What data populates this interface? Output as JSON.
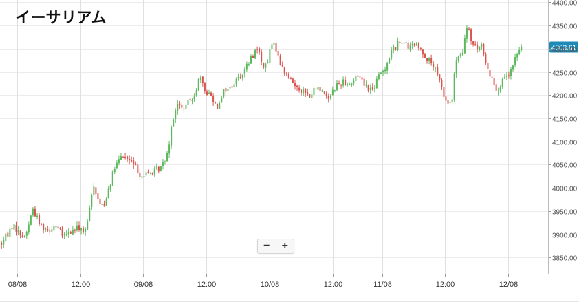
{
  "chart_data": {
    "type": "candlestick",
    "title": "イーサリアム",
    "ylim": [
      3815,
      4405
    ],
    "xlim": [
      0,
      4.34
    ],
    "y_ticks": [
      3850,
      3900,
      3950,
      4000,
      4050,
      4100,
      4150,
      4200,
      4250,
      4300,
      4350,
      4400
    ],
    "y_tick_labels": [
      "3850.00",
      "3900.00",
      "3950.00",
      "4000.00",
      "4050.00",
      "4100.00",
      "4150.00",
      "4200.00",
      "4250.00",
      "4300.00",
      "4350.00",
      "4400.00"
    ],
    "x_ticks": [
      {
        "label": "08/08",
        "x": 0.135
      },
      {
        "label": "12:00",
        "x": 0.635
      },
      {
        "label": "09/08",
        "x": 1.135
      },
      {
        "label": "12:00",
        "x": 1.635
      },
      {
        "label": "10/08",
        "x": 2.135
      },
      {
        "label": "12:00",
        "x": 2.635
      },
      {
        "label": "11/08",
        "x": 3.025
      },
      {
        "label": "12:00",
        "x": 3.525
      },
      {
        "label": "12/08",
        "x": 4.025
      }
    ],
    "current_price": 4303.61,
    "current_price_label": "4303.61",
    "grid": true,
    "up_color": "#5cb85c",
    "down_color": "#d9534f",
    "price_line_color": "#1f8ab8",
    "anchors": [
      [
        0.0,
        3875
      ],
      [
        0.07,
        3905
      ],
      [
        0.1,
        3920
      ],
      [
        0.16,
        3900
      ],
      [
        0.2,
        3895
      ],
      [
        0.26,
        3955
      ],
      [
        0.32,
        3920
      ],
      [
        0.38,
        3910
      ],
      [
        0.44,
        3920
      ],
      [
        0.5,
        3895
      ],
      [
        0.56,
        3905
      ],
      [
        0.62,
        3915
      ],
      [
        0.68,
        3905
      ],
      [
        0.71,
        3955
      ],
      [
        0.74,
        4010
      ],
      [
        0.78,
        3970
      ],
      [
        0.82,
        3960
      ],
      [
        0.86,
        4000
      ],
      [
        0.91,
        4045
      ],
      [
        0.97,
        4070
      ],
      [
        1.02,
        4060
      ],
      [
        1.06,
        4050
      ],
      [
        1.12,
        4025
      ],
      [
        1.16,
        4030
      ],
      [
        1.22,
        4035
      ],
      [
        1.28,
        4045
      ],
      [
        1.33,
        4080
      ],
      [
        1.36,
        4140
      ],
      [
        1.4,
        4180
      ],
      [
        1.45,
        4170
      ],
      [
        1.51,
        4190
      ],
      [
        1.55,
        4210
      ],
      [
        1.58,
        4240
      ],
      [
        1.62,
        4210
      ],
      [
        1.67,
        4200
      ],
      [
        1.72,
        4175
      ],
      [
        1.77,
        4210
      ],
      [
        1.82,
        4215
      ],
      [
        1.88,
        4235
      ],
      [
        1.94,
        4255
      ],
      [
        2.0,
        4285
      ],
      [
        2.04,
        4305
      ],
      [
        2.07,
        4270
      ],
      [
        2.11,
        4260
      ],
      [
        2.15,
        4310
      ],
      [
        2.19,
        4300
      ],
      [
        2.23,
        4260
      ],
      [
        2.28,
        4240
      ],
      [
        2.34,
        4220
      ],
      [
        2.4,
        4210
      ],
      [
        2.45,
        4195
      ],
      [
        2.5,
        4215
      ],
      [
        2.55,
        4210
      ],
      [
        2.6,
        4195
      ],
      [
        2.66,
        4220
      ],
      [
        2.72,
        4230
      ],
      [
        2.78,
        4225
      ],
      [
        2.84,
        4245
      ],
      [
        2.9,
        4220
      ],
      [
        2.95,
        4210
      ],
      [
        3.0,
        4240
      ],
      [
        3.05,
        4260
      ],
      [
        3.1,
        4295
      ],
      [
        3.15,
        4310
      ],
      [
        3.19,
        4320
      ],
      [
        3.24,
        4300
      ],
      [
        3.28,
        4310
      ],
      [
        3.34,
        4295
      ],
      [
        3.38,
        4280
      ],
      [
        3.44,
        4260
      ],
      [
        3.48,
        4230
      ],
      [
        3.52,
        4195
      ],
      [
        3.55,
        4180
      ],
      [
        3.58,
        4190
      ],
      [
        3.61,
        4275
      ],
      [
        3.66,
        4285
      ],
      [
        3.7,
        4350
      ],
      [
        3.74,
        4310
      ],
      [
        3.78,
        4300
      ],
      [
        3.82,
        4305
      ],
      [
        3.86,
        4255
      ],
      [
        3.9,
        4235
      ],
      [
        3.94,
        4210
      ],
      [
        3.97,
        4225
      ],
      [
        4.0,
        4235
      ],
      [
        4.04,
        4245
      ],
      [
        4.08,
        4280
      ],
      [
        4.12,
        4300
      ],
      [
        4.14,
        4304
      ]
    ]
  },
  "zoom": {
    "minus": "−",
    "plus": "+"
  }
}
